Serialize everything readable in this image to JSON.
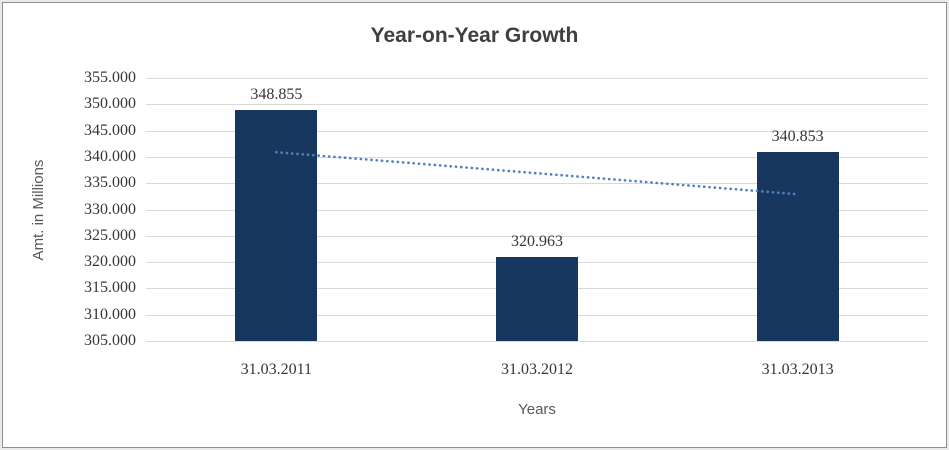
{
  "window": {
    "outer_background": "#E9E9E9",
    "border_color": "#8F8F8F",
    "canvas_background": "#FFFFFF"
  },
  "chart_data": {
    "type": "bar",
    "title": "Year-on-Year Growth",
    "title_color": "#3F3F3F",
    "xlabel": "Years",
    "ylabel": "Amt. in Millions",
    "axis_title_color": "#595959",
    "categories": [
      "31.03.2011",
      "31.03.2012",
      "31.03.2013"
    ],
    "values": [
      348.855,
      320.963,
      340.853
    ],
    "data_labels": [
      "348.855",
      "320.963",
      "340.853"
    ],
    "ylim": [
      305,
      355
    ],
    "ytick_step": 5,
    "ytick_labels": [
      "355.000",
      "350.000",
      "345.000",
      "340.000",
      "335.000",
      "330.000",
      "325.000",
      "320.000",
      "315.000",
      "310.000",
      "305.000"
    ],
    "tick_color": "#363636",
    "grid": true,
    "gridline_color": "#D9D9D9",
    "bar_color": "#17375E",
    "legend": "none",
    "trendline": {
      "type": "linear",
      "style": "dotted",
      "color": "#4F81BD"
    }
  }
}
